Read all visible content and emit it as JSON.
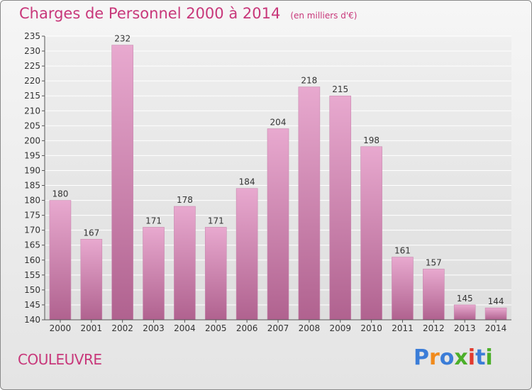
{
  "header": {
    "title": "Charges de Personnel 2000 à 2014",
    "subtitle": "(en milliers d'€)"
  },
  "footer": {
    "commune": "COULEUVRE",
    "logo": [
      "P",
      "r",
      "o",
      "x",
      "i",
      "t",
      "i"
    ]
  },
  "colors": {
    "accent": "#c8377a",
    "bar_top": "#e8a9cf",
    "bar_bottom": "#b0628f",
    "logo": [
      "#3b7dd8",
      "#f08a1c",
      "#3b7dd8",
      "#4caf2a",
      "#e23a2e",
      "#3b7dd8",
      "#4caf2a"
    ]
  },
  "chart_data": {
    "type": "bar",
    "categories": [
      "2000",
      "2001",
      "2002",
      "2003",
      "2004",
      "2005",
      "2006",
      "2007",
      "2008",
      "2009",
      "2010",
      "2011",
      "2012",
      "2013",
      "2014"
    ],
    "values": [
      180,
      167,
      232,
      171,
      178,
      171,
      184,
      204,
      218,
      215,
      198,
      161,
      157,
      145,
      144
    ],
    "title": "Charges de Personnel 2000 à 2014",
    "subtitle": "(en milliers d'€)",
    "xlabel": "",
    "ylabel": "",
    "ylim": [
      140,
      235
    ],
    "yticks": [
      140,
      145,
      150,
      155,
      160,
      165,
      170,
      175,
      180,
      185,
      190,
      195,
      200,
      205,
      210,
      215,
      220,
      225,
      230,
      235
    ],
    "grid": true,
    "data_labels": true
  }
}
